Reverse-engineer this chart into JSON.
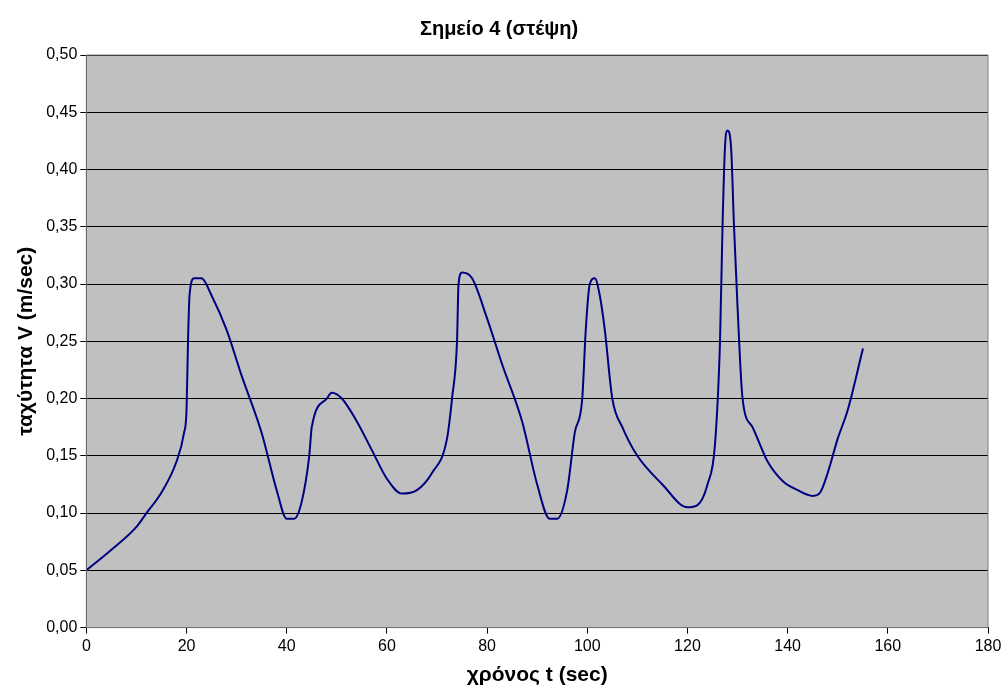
{
  "chart_data": {
    "type": "line",
    "title": "Σημείο 4 (στέψη)",
    "xlabel": "χρόνος t (sec)",
    "ylabel": "ταχύτητα V (m/sec)",
    "xlim": [
      0,
      180
    ],
    "xticks": [
      0,
      20,
      40,
      60,
      80,
      100,
      120,
      140,
      160,
      180
    ],
    "ylim": [
      0,
      0.5
    ],
    "yticks": [
      {
        "value": 0,
        "label": "0,00"
      },
      {
        "value": 0.05,
        "label": "0,05"
      },
      {
        "value": 0.1,
        "label": "0,10"
      },
      {
        "value": 0.15,
        "label": "0,15"
      },
      {
        "value": 0.2,
        "label": "0,20"
      },
      {
        "value": 0.25,
        "label": "0,25"
      },
      {
        "value": 0.3,
        "label": "0,30"
      },
      {
        "value": 0.35,
        "label": "0,35"
      },
      {
        "value": 0.4,
        "label": "0,40"
      },
      {
        "value": 0.45,
        "label": "0,45"
      },
      {
        "value": 0.5,
        "label": "0,50"
      }
    ],
    "grid": "y",
    "legend": false,
    "marker": "none",
    "line_style": "solid",
    "x": [
      0,
      5,
      10,
      12,
      15,
      18,
      19.5,
      20,
      20.3,
      20.6,
      21.5,
      23,
      25,
      28,
      31,
      35,
      38,
      40,
      41.5,
      43,
      44.5,
      45,
      48,
      49,
      51,
      54,
      57,
      60,
      63,
      66,
      69,
      72,
      73,
      74,
      74.3,
      75,
      77,
      80,
      83,
      87,
      90,
      92.5,
      94,
      96,
      97.5,
      99,
      99.7,
      100.5,
      101.5,
      102.5,
      103.5,
      105,
      107,
      110,
      115,
      120,
      122,
      124,
      125.5,
      126.5,
      127,
      127.5,
      128,
      128.7,
      129.3,
      130,
      131,
      133,
      136,
      139,
      142,
      145,
      146.5,
      148,
      150,
      152,
      155
    ],
    "series": [
      {
        "color": "#000080",
        "values": [
          0.05,
          0.068,
          0.088,
          0.1,
          0.118,
          0.145,
          0.17,
          0.19,
          0.25,
          0.29,
          0.305,
          0.305,
          0.29,
          0.26,
          0.22,
          0.17,
          0.12,
          0.095,
          0.095,
          0.11,
          0.15,
          0.175,
          0.2,
          0.205,
          0.2,
          0.18,
          0.155,
          0.13,
          0.117,
          0.12,
          0.135,
          0.165,
          0.2,
          0.25,
          0.3,
          0.31,
          0.305,
          0.27,
          0.23,
          0.18,
          0.125,
          0.095,
          0.095,
          0.12,
          0.17,
          0.2,
          0.26,
          0.3,
          0.305,
          0.29,
          0.26,
          0.2,
          0.175,
          0.15,
          0.125,
          0.105,
          0.107,
          0.125,
          0.16,
          0.25,
          0.35,
          0.42,
          0.434,
          0.42,
          0.35,
          0.28,
          0.2,
          0.175,
          0.145,
          0.128,
          0.12,
          0.115,
          0.118,
          0.135,
          0.165,
          0.19,
          0.243
        ]
      }
    ]
  }
}
